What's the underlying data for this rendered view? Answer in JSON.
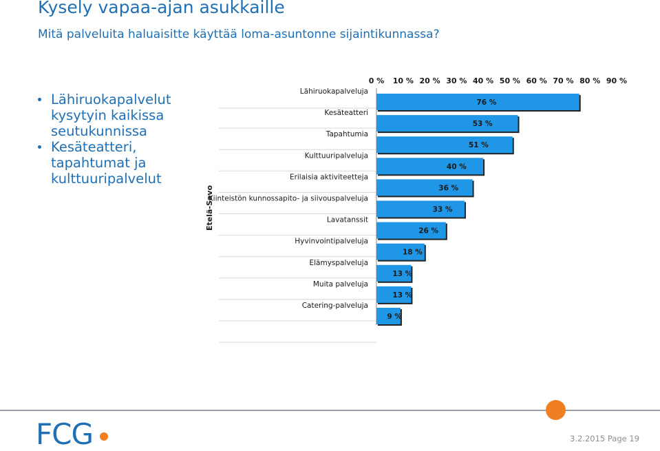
{
  "header": {
    "title": "Kysely vapaa-ajan asukkaille",
    "subtitle": "Mitä palveluita haluaisitte käyttää loma-asuntonne sijaintikunnassa?"
  },
  "bullets": [
    "Lähiruokapalvelut kysytyin kaikissa seutukunnissa",
    "Kesäteatteri, tapahtumat ja kulttuuripalvelut"
  ],
  "footer": {
    "logo": "FCG",
    "date": "3.2.2015",
    "page": "Page 19"
  },
  "chart_data": {
    "type": "bar",
    "orientation": "horizontal",
    "group_label": "Etelä-Savo",
    "categories": [
      "Lähiruokapalveluja",
      "Kesäteatteri",
      "Tapahtumia",
      "Kulttuuripalveluja",
      "Erilaisia aktiviteetteja",
      "Kiinteistön kunnossapito- ja siivouspalveluja",
      "Lavatanssit",
      "Hyvinvointipalveluja",
      "Elämyspalveluja",
      "Muita palveluja",
      "Catering-palveluja"
    ],
    "values": [
      76,
      53,
      51,
      40,
      36,
      33,
      26,
      18,
      13,
      13,
      9
    ],
    "value_labels": [
      "76 %",
      "53 %",
      "51 %",
      "40 %",
      "36 %",
      "33 %",
      "26 %",
      "18 %",
      "13 %",
      "13 %",
      "9 %"
    ],
    "xlim": [
      0,
      90
    ],
    "xticks": [
      "0 %",
      "10 %",
      "20 %",
      "30 %",
      "40 %",
      "50 %",
      "60 %",
      "70 %",
      "80 %",
      "90 %"
    ],
    "axis_position": "top",
    "grid": false,
    "bar_color": "#1f97e6",
    "label_color": "#1a1a1a"
  }
}
